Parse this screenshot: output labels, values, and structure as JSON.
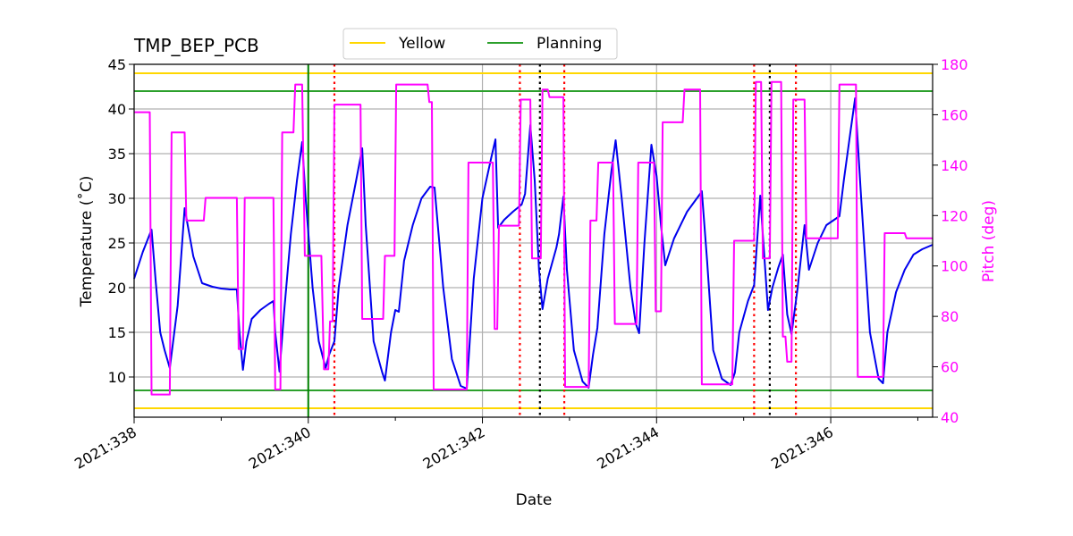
{
  "chart_data": {
    "type": "line",
    "title": "TMP_BEP_PCB",
    "xlabel": "Date",
    "ylabel": "Temperature ($^\\circ$C)",
    "ylabel_display": "Temperature (˚C)",
    "y2label": "Pitch (deg)",
    "xlim": [
      338.0,
      347.17
    ],
    "ylim": [
      5.5,
      45
    ],
    "y2lim": [
      40,
      180
    ],
    "x_ticks": [
      {
        "value": 338,
        "label": "2021:338"
      },
      {
        "value": 340,
        "label": "2021:340"
      },
      {
        "value": 342,
        "label": "2021:342"
      },
      {
        "value": 344,
        "label": "2021:344"
      },
      {
        "value": 346,
        "label": "2021:346"
      }
    ],
    "y_ticks": [
      10,
      15,
      20,
      25,
      30,
      35,
      40,
      45
    ],
    "y2_ticks": [
      40,
      60,
      80,
      100,
      120,
      140,
      160,
      180
    ],
    "grid": true,
    "legend": {
      "placement": "top-center",
      "entries": [
        {
          "name": "Yellow",
          "color": "#ffd700"
        },
        {
          "name": "Planning",
          "color": "#2ca02c"
        }
      ]
    },
    "limits": {
      "yellow": [
        6.5,
        44
      ],
      "planning": [
        8.5,
        42
      ]
    },
    "vlines": {
      "planning_start": {
        "x": 340.0,
        "color": "#008000",
        "style": "solid"
      },
      "red_dotted": {
        "x": [
          340.3,
          342.43,
          342.94,
          345.12,
          345.6
        ],
        "color": "#ff0000",
        "style": "dotted"
      },
      "black_dotted": {
        "x": [
          342.66,
          345.3
        ],
        "color": "#000000",
        "style": "dotted"
      }
    },
    "series": [
      {
        "axis": "temperature",
        "color": "#0000ee",
        "points": [
          [
            338.0,
            21.0
          ],
          [
            338.1,
            24.0
          ],
          [
            338.2,
            26.5
          ],
          [
            338.25,
            20.5
          ],
          [
            338.3,
            15.0
          ],
          [
            338.35,
            13.0
          ],
          [
            338.41,
            11.0
          ],
          [
            338.5,
            18.0
          ],
          [
            338.58,
            28.9
          ],
          [
            338.68,
            23.5
          ],
          [
            338.78,
            20.5
          ],
          [
            338.9,
            20.1
          ],
          [
            339.0,
            19.9
          ],
          [
            339.1,
            19.8
          ],
          [
            339.18,
            19.8
          ],
          [
            339.21,
            15.0
          ],
          [
            339.25,
            10.8
          ],
          [
            339.29,
            14.0
          ],
          [
            339.35,
            16.5
          ],
          [
            339.45,
            17.5
          ],
          [
            339.55,
            18.2
          ],
          [
            339.6,
            18.5
          ],
          [
            339.62,
            15.0
          ],
          [
            339.67,
            10.6
          ],
          [
            339.72,
            17.0
          ],
          [
            339.8,
            26.0
          ],
          [
            339.87,
            32.0
          ],
          [
            339.93,
            36.3
          ],
          [
            339.97,
            30.0
          ],
          [
            340.05,
            20.0
          ],
          [
            340.12,
            14.0
          ],
          [
            340.2,
            11.0
          ],
          [
            340.24,
            12.5
          ],
          [
            340.3,
            14.0
          ],
          [
            340.35,
            20.0
          ],
          [
            340.45,
            27.0
          ],
          [
            340.55,
            32.0
          ],
          [
            340.62,
            35.6
          ],
          [
            340.66,
            27.0
          ],
          [
            340.75,
            14.0
          ],
          [
            340.85,
            10.5
          ],
          [
            340.88,
            9.6
          ],
          [
            340.95,
            15.0
          ],
          [
            341.0,
            17.5
          ],
          [
            341.04,
            17.3
          ],
          [
            341.1,
            23.0
          ],
          [
            341.2,
            27.0
          ],
          [
            341.3,
            30.0
          ],
          [
            341.4,
            31.3
          ],
          [
            341.45,
            31.2
          ],
          [
            341.55,
            20.0
          ],
          [
            341.65,
            12.0
          ],
          [
            341.75,
            9.0
          ],
          [
            341.82,
            8.7
          ],
          [
            341.9,
            21.0
          ],
          [
            342.0,
            30.0
          ],
          [
            342.1,
            34.5
          ],
          [
            342.15,
            36.6
          ],
          [
            342.18,
            26.7
          ],
          [
            342.25,
            27.6
          ],
          [
            342.35,
            28.5
          ],
          [
            342.45,
            29.3
          ],
          [
            342.49,
            30.5
          ],
          [
            342.55,
            38.2
          ],
          [
            342.6,
            32.0
          ],
          [
            342.65,
            22.0
          ],
          [
            342.69,
            17.6
          ],
          [
            342.75,
            21.0
          ],
          [
            342.85,
            24.5
          ],
          [
            342.88,
            26.0
          ],
          [
            342.93,
            30.2
          ],
          [
            342.97,
            22.0
          ],
          [
            343.05,
            13.0
          ],
          [
            343.15,
            9.5
          ],
          [
            343.22,
            8.8
          ],
          [
            343.27,
            12.5
          ],
          [
            343.32,
            15.5
          ],
          [
            343.4,
            26.0
          ],
          [
            343.48,
            33.0
          ],
          [
            343.53,
            36.5
          ],
          [
            343.6,
            30.0
          ],
          [
            343.7,
            20.0
          ],
          [
            343.76,
            16.0
          ],
          [
            343.8,
            14.9
          ],
          [
            343.86,
            25.0
          ],
          [
            343.94,
            36.0
          ],
          [
            344.0,
            32.5
          ],
          [
            344.05,
            27.0
          ],
          [
            344.1,
            22.5
          ],
          [
            344.2,
            25.5
          ],
          [
            344.35,
            28.5
          ],
          [
            344.5,
            30.5
          ],
          [
            344.52,
            30.8
          ],
          [
            344.58,
            23.0
          ],
          [
            344.65,
            13.0
          ],
          [
            344.75,
            9.8
          ],
          [
            344.85,
            9.1
          ],
          [
            344.9,
            10.5
          ],
          [
            344.95,
            15.0
          ],
          [
            345.05,
            18.5
          ],
          [
            345.12,
            20.3
          ],
          [
            345.19,
            30.3
          ],
          [
            345.23,
            24.5
          ],
          [
            345.28,
            17.5
          ],
          [
            345.33,
            20.0
          ],
          [
            345.4,
            22.3
          ],
          [
            345.45,
            23.7
          ],
          [
            345.5,
            17.0
          ],
          [
            345.55,
            14.8
          ],
          [
            345.62,
            20.0
          ],
          [
            345.7,
            27.0
          ],
          [
            345.75,
            22.0
          ],
          [
            345.85,
            25.0
          ],
          [
            345.95,
            27.0
          ],
          [
            346.1,
            28.0
          ],
          [
            346.15,
            32.0
          ],
          [
            346.22,
            37.0
          ],
          [
            346.28,
            41.2
          ],
          [
            346.35,
            30.0
          ],
          [
            346.45,
            15.0
          ],
          [
            346.55,
            9.8
          ],
          [
            346.6,
            9.3
          ],
          [
            346.65,
            15.0
          ],
          [
            346.75,
            19.5
          ],
          [
            346.85,
            22.0
          ],
          [
            346.95,
            23.7
          ],
          [
            347.05,
            24.3
          ],
          [
            347.17,
            24.8
          ]
        ]
      },
      {
        "axis": "pitch",
        "color": "#ff00ff",
        "points": [
          [
            338.0,
            161.0
          ],
          [
            338.18,
            161.0
          ],
          [
            338.2,
            49.0
          ],
          [
            338.41,
            49.0
          ],
          [
            338.43,
            153.0
          ],
          [
            338.58,
            153.0
          ],
          [
            338.6,
            118.0
          ],
          [
            338.8,
            118.0
          ],
          [
            338.82,
            127.0
          ],
          [
            339.18,
            127.0
          ],
          [
            339.2,
            67.0
          ],
          [
            339.25,
            67.0
          ],
          [
            339.27,
            127.0
          ],
          [
            339.6,
            127.0
          ],
          [
            339.62,
            51.0
          ],
          [
            339.68,
            51.0
          ],
          [
            339.7,
            153.0
          ],
          [
            339.83,
            153.0
          ],
          [
            339.85,
            172.0
          ],
          [
            339.93,
            172.0
          ],
          [
            339.96,
            104.0
          ],
          [
            340.15,
            104.0
          ],
          [
            340.18,
            59.0
          ],
          [
            340.23,
            59.0
          ],
          [
            340.25,
            78.0
          ],
          [
            340.28,
            78.0
          ],
          [
            340.3,
            164.0
          ],
          [
            340.6,
            164.0
          ],
          [
            340.62,
            79.0
          ],
          [
            340.86,
            79.0
          ],
          [
            340.88,
            104.0
          ],
          [
            340.99,
            104.0
          ],
          [
            341.01,
            172.0
          ],
          [
            341.37,
            172.0
          ],
          [
            341.39,
            165.0
          ],
          [
            341.42,
            165.0
          ],
          [
            341.44,
            51.0
          ],
          [
            341.82,
            51.0
          ],
          [
            341.84,
            141.0
          ],
          [
            342.12,
            141.0
          ],
          [
            342.14,
            75.0
          ],
          [
            342.17,
            75.0
          ],
          [
            342.19,
            116.0
          ],
          [
            342.42,
            116.0
          ],
          [
            342.44,
            166.0
          ],
          [
            342.55,
            166.0
          ],
          [
            342.57,
            103.0
          ],
          [
            342.67,
            103.0
          ],
          [
            342.69,
            170.0
          ],
          [
            342.75,
            170.0
          ],
          [
            342.77,
            167.0
          ],
          [
            342.93,
            167.0
          ],
          [
            342.95,
            52.0
          ],
          [
            343.22,
            52.0
          ],
          [
            343.24,
            118.0
          ],
          [
            343.31,
            118.0
          ],
          [
            343.33,
            141.0
          ],
          [
            343.5,
            141.0
          ],
          [
            343.52,
            77.0
          ],
          [
            343.77,
            77.0
          ],
          [
            343.79,
            141.0
          ],
          [
            343.97,
            141.0
          ],
          [
            343.99,
            82.0
          ],
          [
            344.05,
            82.0
          ],
          [
            344.07,
            157.0
          ],
          [
            344.3,
            157.0
          ],
          [
            344.32,
            170.0
          ],
          [
            344.5,
            170.0
          ],
          [
            344.52,
            53.0
          ],
          [
            344.87,
            53.0
          ],
          [
            344.89,
            110.0
          ],
          [
            345.12,
            110.0
          ],
          [
            345.14,
            173.0
          ],
          [
            345.2,
            173.0
          ],
          [
            345.22,
            103.0
          ],
          [
            345.3,
            103.0
          ],
          [
            345.32,
            173.0
          ],
          [
            345.43,
            173.0
          ],
          [
            345.45,
            72.0
          ],
          [
            345.48,
            72.0
          ],
          [
            345.5,
            62.0
          ],
          [
            345.55,
            62.0
          ],
          [
            345.57,
            166.0
          ],
          [
            345.7,
            166.0
          ],
          [
            345.72,
            111.0
          ],
          [
            346.08,
            111.0
          ],
          [
            346.1,
            172.0
          ],
          [
            346.29,
            172.0
          ],
          [
            346.31,
            56.0
          ],
          [
            346.6,
            56.0
          ],
          [
            346.62,
            113.0
          ],
          [
            346.85,
            113.0
          ],
          [
            346.87,
            111.0
          ],
          [
            347.17,
            111.0
          ]
        ]
      }
    ]
  }
}
